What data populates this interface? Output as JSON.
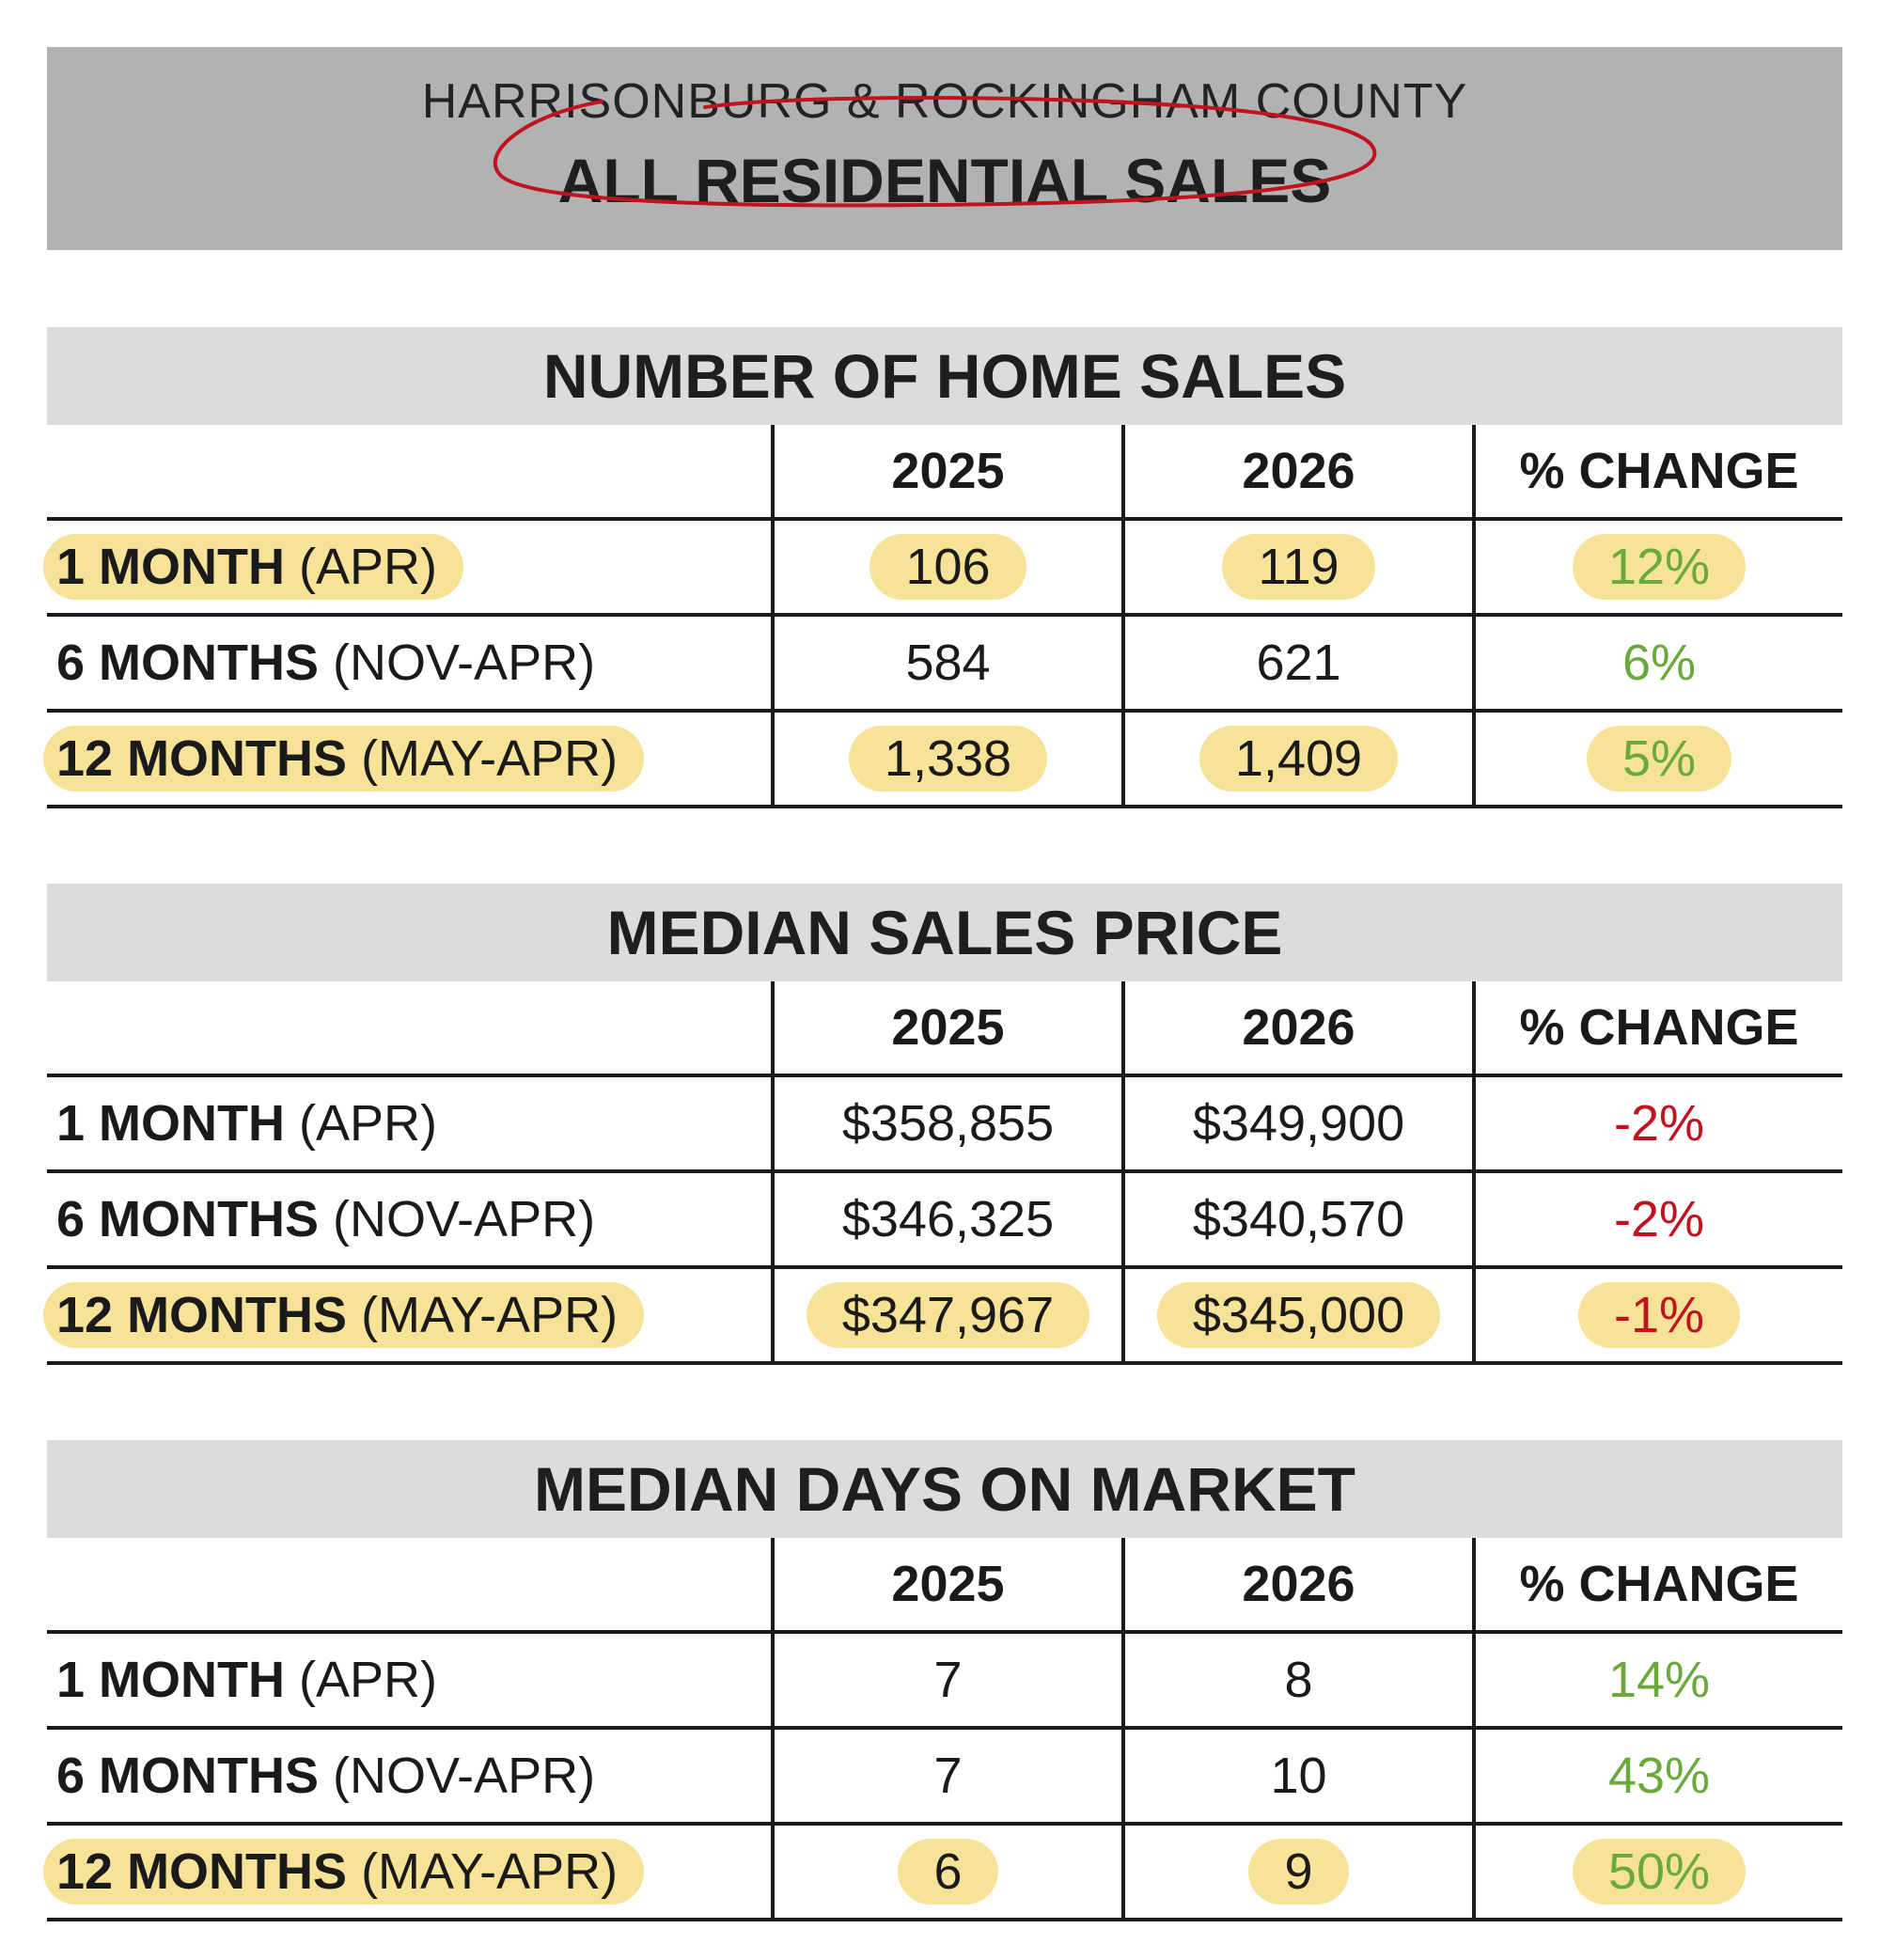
{
  "header": {
    "county": "HARRISONBURG & ROCKINGHAM COUNTY",
    "title": "ALL RESIDENTIAL SALES"
  },
  "colors": {
    "positive": "#6aaa3c",
    "negative": "#c1121f",
    "highlight": "#f6e397",
    "circle": "#c1121f"
  },
  "sections": [
    {
      "title": "NUMBER OF HOME SALES",
      "columns": [
        "2025",
        "2026",
        "% CHANGE"
      ],
      "rows": [
        {
          "label_bold": "1 MONTH",
          "label_period": "(APR)",
          "y2025": "106",
          "y2026": "119",
          "change": "12%",
          "trend": "positive",
          "highlighted": true
        },
        {
          "label_bold": "6 MONTHS",
          "label_period": "(NOV-APR)",
          "y2025": "584",
          "y2026": "621",
          "change": "6%",
          "trend": "positive",
          "highlighted": false
        },
        {
          "label_bold": "12 MONTHS",
          "label_period": "(MAY-APR)",
          "y2025": "1,338",
          "y2026": "1,409",
          "change": "5%",
          "trend": "positive",
          "highlighted": true
        }
      ]
    },
    {
      "title": "MEDIAN SALES PRICE",
      "columns": [
        "2025",
        "2026",
        "% CHANGE"
      ],
      "rows": [
        {
          "label_bold": "1 MONTH",
          "label_period": "(APR)",
          "y2025": "$358,855",
          "y2026": "$349,900",
          "change": "-2%",
          "trend": "negative",
          "highlighted": false
        },
        {
          "label_bold": "6 MONTHS",
          "label_period": "(NOV-APR)",
          "y2025": "$346,325",
          "y2026": "$340,570",
          "change": "-2%",
          "trend": "negative",
          "highlighted": false
        },
        {
          "label_bold": "12 MONTHS",
          "label_period": "(MAY-APR)",
          "y2025": "$347,967",
          "y2026": "$345,000",
          "change": "-1%",
          "trend": "negative",
          "highlighted": true
        }
      ]
    },
    {
      "title": "MEDIAN DAYS ON MARKET",
      "columns": [
        "2025",
        "2026",
        "% CHANGE"
      ],
      "rows": [
        {
          "label_bold": "1 MONTH",
          "label_period": "(APR)",
          "y2025": "7",
          "y2026": "8",
          "change": "14%",
          "trend": "positive",
          "highlighted": false
        },
        {
          "label_bold": "6 MONTHS",
          "label_period": "(NOV-APR)",
          "y2025": "7",
          "y2026": "10",
          "change": "43%",
          "trend": "positive",
          "highlighted": false
        },
        {
          "label_bold": "12 MONTHS",
          "label_period": "(MAY-APR)",
          "y2025": "6",
          "y2026": "9",
          "change": "50%",
          "trend": "positive",
          "highlighted": true
        }
      ]
    }
  ]
}
